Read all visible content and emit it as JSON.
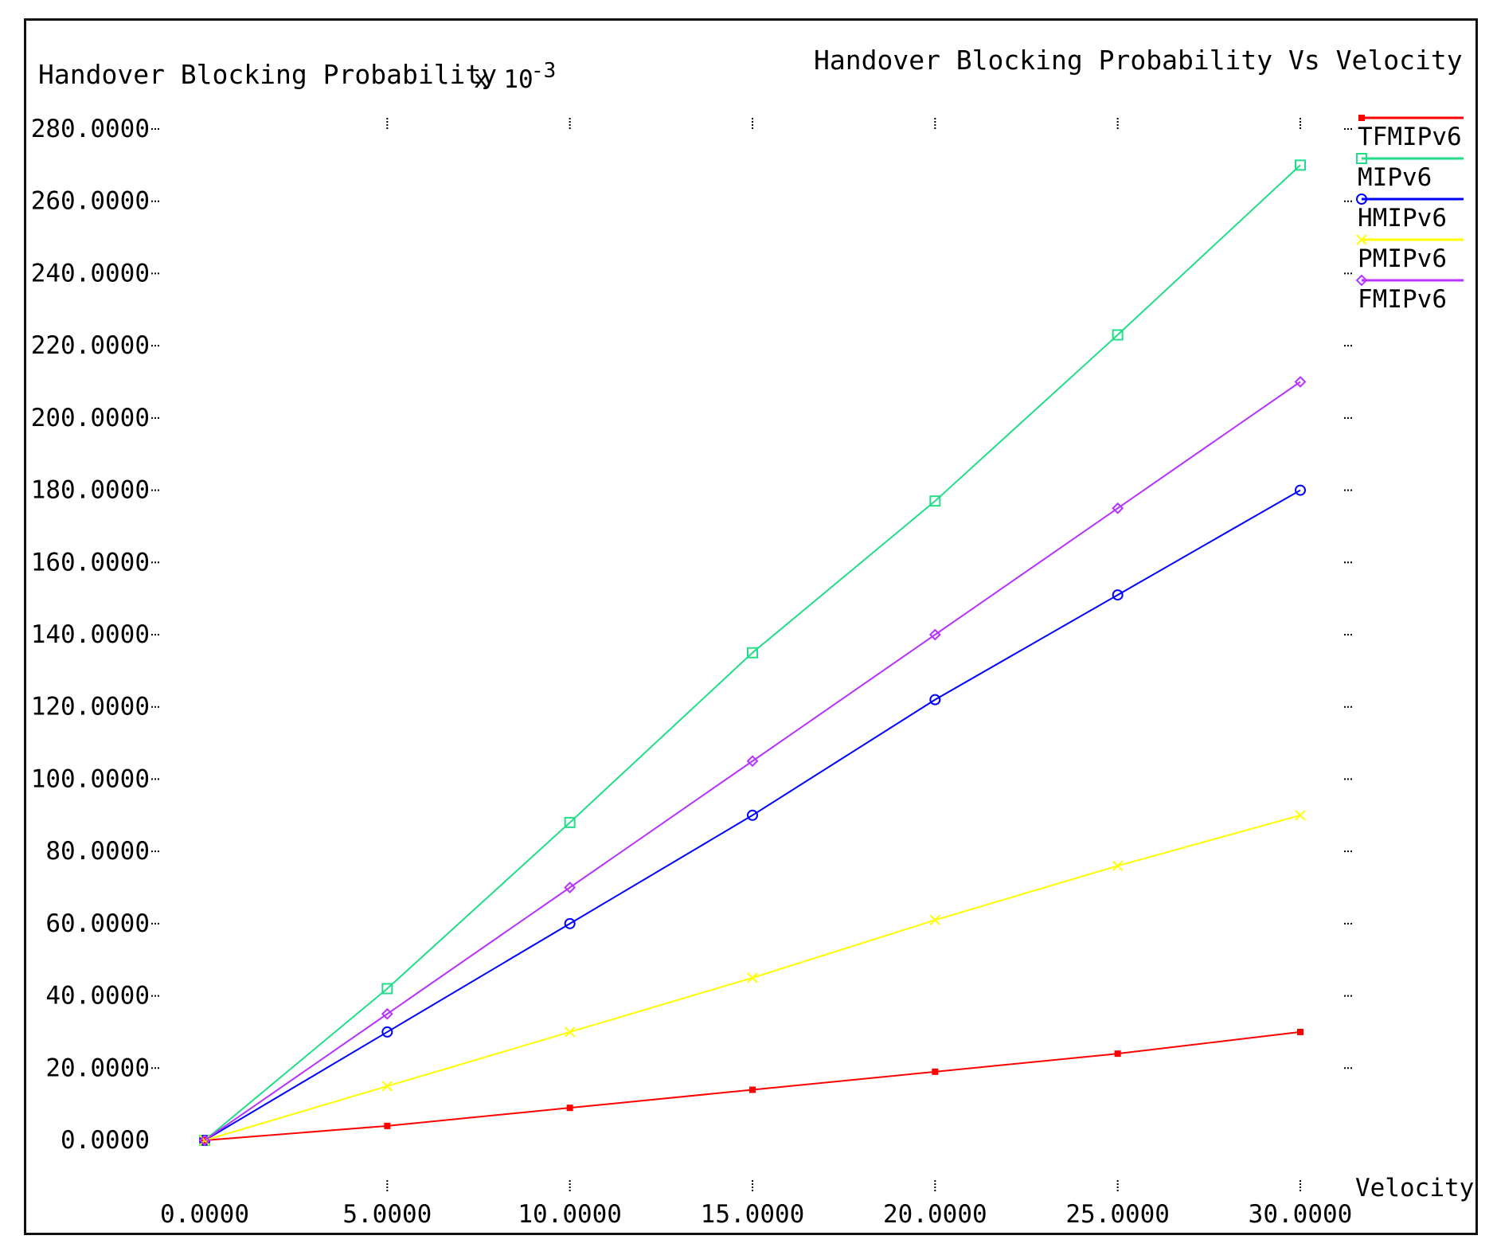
{
  "chart_data": {
    "type": "line",
    "title": "Handover Blocking Probability Vs Velocity",
    "ylabel": "Handover Blocking Probability",
    "ylabel_scale_base": "x 10",
    "ylabel_scale_exp": "-3",
    "xlabel": "Velocity",
    "xlim": [
      0,
      30
    ],
    "ylim": [
      0,
      280
    ],
    "x_ticks": [
      0,
      5,
      10,
      15,
      20,
      25,
      30
    ],
    "x_tick_labels": [
      "0.0000",
      "5.0000",
      "10.0000",
      "15.0000",
      "20.0000",
      "25.0000",
      "30.0000"
    ],
    "y_ticks": [
      0,
      20,
      40,
      60,
      80,
      100,
      120,
      140,
      160,
      180,
      200,
      220,
      240,
      260,
      280
    ],
    "y_tick_labels": [
      "0.0000",
      "20.0000",
      "40.0000",
      "60.0000",
      "80.0000",
      "100.0000",
      "120.0000",
      "140.0000",
      "160.0000",
      "180.0000",
      "200.0000",
      "220.0000",
      "240.0000",
      "260.0000",
      "280.0000"
    ],
    "grid": false,
    "legend_position": "top-right",
    "x": [
      0,
      5,
      10,
      15,
      20,
      25,
      30
    ],
    "series": [
      {
        "name": "TFMIPv6",
        "color": "#ff0000",
        "marker": "filled-square",
        "values": [
          0,
          4,
          9,
          14,
          19,
          24,
          30
        ]
      },
      {
        "name": "MIPv6",
        "color": "#22dd88",
        "marker": "square",
        "values": [
          0,
          42,
          88,
          135,
          177,
          223,
          270
        ]
      },
      {
        "name": "HMIPv6",
        "color": "#0000ff",
        "marker": "circle",
        "values": [
          0,
          30,
          60,
          90,
          122,
          151,
          180
        ]
      },
      {
        "name": "PMIPv6",
        "color": "#ffff00",
        "marker": "x",
        "values": [
          0,
          15,
          30,
          45,
          61,
          76,
          90
        ]
      },
      {
        "name": "FMIPv6",
        "color": "#b833ff",
        "marker": "diamond",
        "values": [
          0,
          35,
          70,
          105,
          140,
          175,
          210
        ]
      }
    ]
  }
}
